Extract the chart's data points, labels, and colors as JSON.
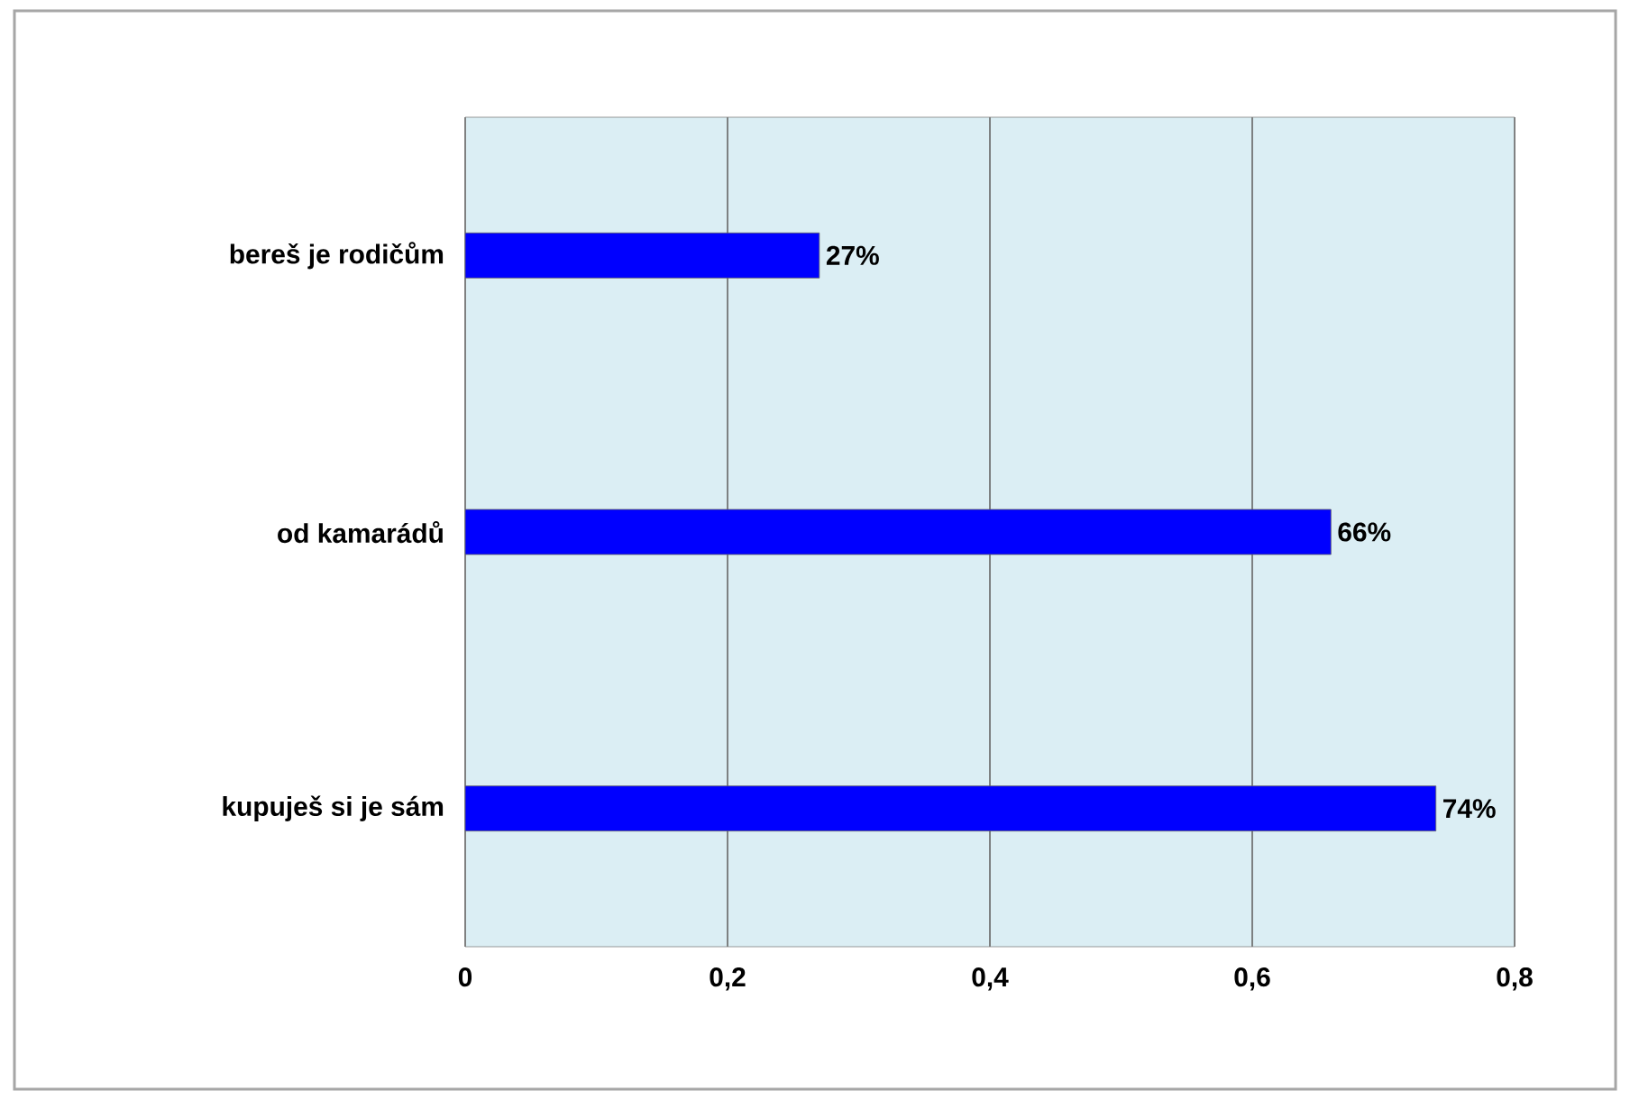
{
  "chart_data": {
    "type": "bar",
    "orientation": "horizontal",
    "categories": [
      "bereš je rodičům",
      "od kamarádů",
      "kupuješ si je sám"
    ],
    "values": [
      0.27,
      0.66,
      0.74
    ],
    "value_labels": [
      "27%",
      "66%",
      "74%"
    ],
    "color": "#0000ff",
    "xlim": [
      0,
      0.8
    ],
    "xticks": [
      0,
      {
        "value": 0.2,
        "label": "0,2"
      },
      {
        "value": 0.4,
        "label": "0,4"
      },
      {
        "value": 0.6,
        "label": "0,6"
      },
      {
        "value": 0.8,
        "label": "0,8"
      }
    ],
    "grid": "x"
  }
}
